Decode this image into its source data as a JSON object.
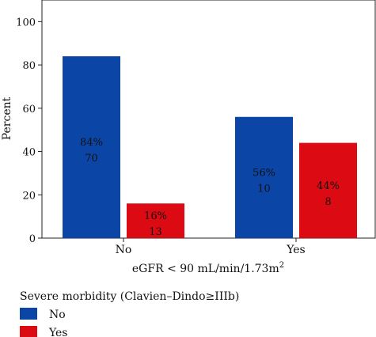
{
  "chart_data": {
    "type": "bar",
    "categories": [
      "No",
      "Yes"
    ],
    "series": [
      {
        "name": "No",
        "color": "#0b45a5",
        "values": [
          84,
          56
        ],
        "labels": [
          [
            "84%",
            "70"
          ],
          [
            "56%",
            "10"
          ]
        ]
      },
      {
        "name": "Yes",
        "color": "#dc0a12",
        "values": [
          16,
          44
        ],
        "labels": [
          [
            "16%",
            "13"
          ],
          [
            "44%",
            "8"
          ]
        ]
      }
    ],
    "xlabel": "eGFR < 90 mL/min/1.73m",
    "xlabel_superscript": "2",
    "ylabel": "Percent",
    "ylim": [
      0,
      110
    ],
    "yticks": [
      0,
      20,
      40,
      60,
      80,
      100
    ],
    "grid": false,
    "legend": {
      "title": "Severe morbidity (Clavien–Dindo≥IIIb)",
      "placement": "bottom-left"
    }
  }
}
